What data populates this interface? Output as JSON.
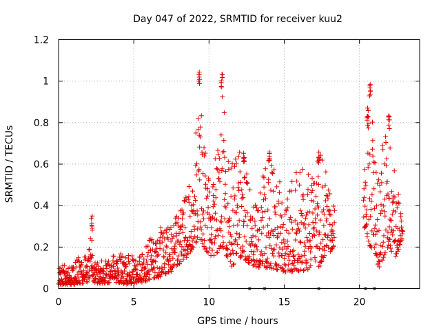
{
  "chart_data": {
    "type": "scatter",
    "title": "Day 047 of 2022, SRMTID for receiver kuu2",
    "xlabel": "GPS time / hours",
    "ylabel": "SRMTID / TECUs",
    "xlim": [
      0,
      24
    ],
    "ylim": [
      0,
      1.2
    ],
    "grid": true,
    "marker": "+",
    "color": "#e00000",
    "x_ticks": [
      0,
      5,
      10,
      15,
      20
    ],
    "x_tick_labels": [
      "0",
      "5",
      "10",
      "15",
      "20"
    ],
    "y_ticks": [
      0,
      0.2,
      0.4,
      0.6,
      0.8,
      1.0,
      1.2
    ],
    "y_tick_labels": [
      "0",
      "0.2",
      "0.4",
      "0.6",
      "0.8",
      "1",
      "1.2"
    ],
    "series": [
      {
        "name": "SRMTID",
        "envelope": [
          {
            "x": 0.0,
            "lo": 0.02,
            "hi": 0.1
          },
          {
            "x": 1.0,
            "lo": 0.02,
            "hi": 0.14
          },
          {
            "x": 2.0,
            "lo": 0.03,
            "hi": 0.18
          },
          {
            "x": 2.15,
            "lo": 0.05,
            "hi": 0.35
          },
          {
            "x": 2.4,
            "lo": 0.02,
            "hi": 0.13
          },
          {
            "x": 3.5,
            "lo": 0.03,
            "hi": 0.14
          },
          {
            "x": 3.8,
            "lo": 0.03,
            "hi": 0.2
          },
          {
            "x": 4.5,
            "lo": 0.02,
            "hi": 0.16
          },
          {
            "x": 5.5,
            "lo": 0.03,
            "hi": 0.16
          },
          {
            "x": 6.5,
            "lo": 0.05,
            "hi": 0.3
          },
          {
            "x": 7.5,
            "lo": 0.08,
            "hi": 0.3
          },
          {
            "x": 8.5,
            "lo": 0.15,
            "hi": 0.45
          },
          {
            "x": 9.0,
            "lo": 0.2,
            "hi": 0.6
          },
          {
            "x": 9.3,
            "lo": 0.25,
            "hi": 1.05
          },
          {
            "x": 9.8,
            "lo": 0.18,
            "hi": 0.7
          },
          {
            "x": 10.2,
            "lo": 0.15,
            "hi": 0.45
          },
          {
            "x": 10.9,
            "lo": 0.2,
            "hi": 1.04
          },
          {
            "x": 11.5,
            "lo": 0.1,
            "hi": 0.6
          },
          {
            "x": 12.2,
            "lo": 0.15,
            "hi": 0.68
          },
          {
            "x": 13.0,
            "lo": 0.1,
            "hi": 0.4
          },
          {
            "x": 14.0,
            "lo": 0.1,
            "hi": 0.67
          },
          {
            "x": 15.0,
            "lo": 0.08,
            "hi": 0.45
          },
          {
            "x": 16.0,
            "lo": 0.08,
            "hi": 0.6
          },
          {
            "x": 17.0,
            "lo": 0.1,
            "hi": 0.55
          },
          {
            "x": 17.3,
            "lo": 0.1,
            "hi": 0.67
          },
          {
            "x": 18.3,
            "lo": 0.2,
            "hi": 0.45
          },
          {
            "x": 20.3,
            "lo": 0.3,
            "hi": 0.55
          },
          {
            "x": 20.7,
            "lo": 0.2,
            "hi": 0.99
          },
          {
            "x": 21.3,
            "lo": 0.1,
            "hi": 0.6
          },
          {
            "x": 21.9,
            "lo": 0.2,
            "hi": 0.84
          },
          {
            "x": 22.4,
            "lo": 0.15,
            "hi": 0.55
          },
          {
            "x": 22.9,
            "lo": 0.25,
            "hi": 0.4
          }
        ],
        "gaps": [
          [
            18.35,
            20.25
          ]
        ],
        "peaks": [
          {
            "x": 9.35,
            "y": 1.05
          },
          {
            "x": 10.85,
            "y": 1.04
          },
          {
            "x": 20.7,
            "y": 0.99
          },
          {
            "x": 20.55,
            "y": 0.88
          },
          {
            "x": 21.95,
            "y": 0.84
          },
          {
            "x": 12.3,
            "y": 0.68
          },
          {
            "x": 14.0,
            "y": 0.67
          },
          {
            "x": 17.3,
            "y": 0.67
          },
          {
            "x": 2.2,
            "y": 0.35
          }
        ]
      }
    ],
    "baseline_markers": {
      "y": 0,
      "x": [
        12.7,
        13.7,
        17.3,
        20.4,
        21.0
      ]
    }
  }
}
